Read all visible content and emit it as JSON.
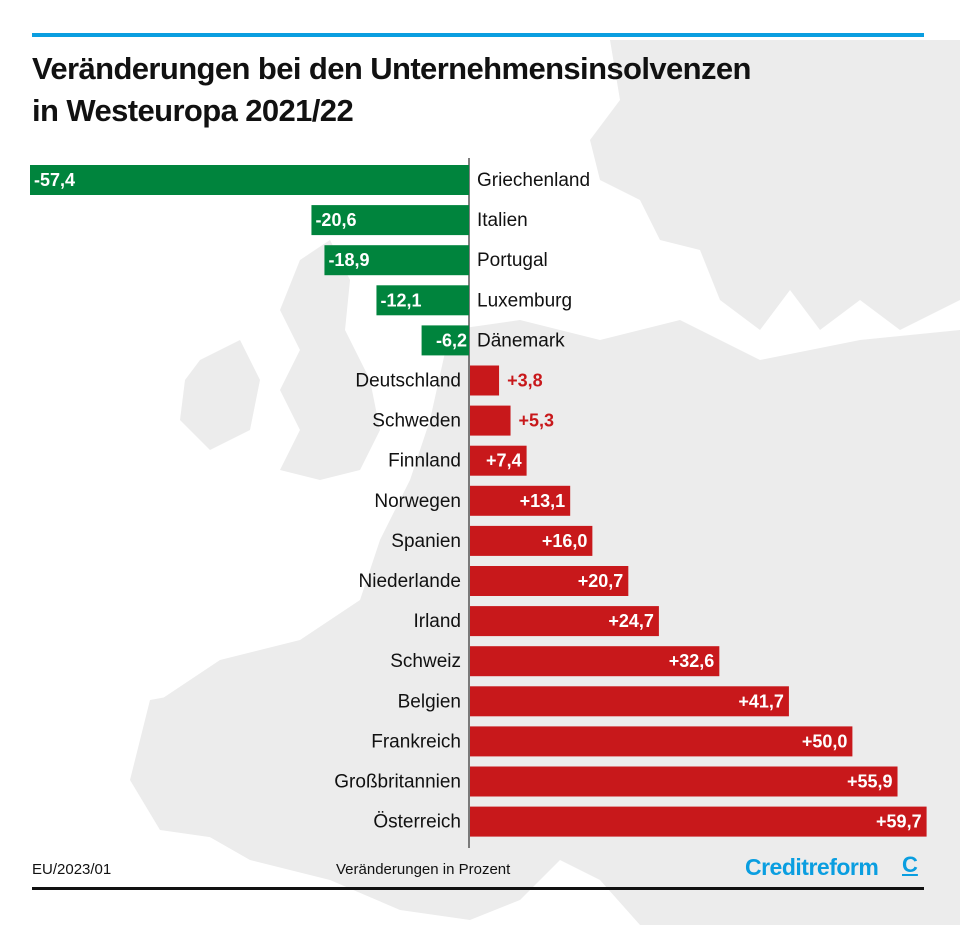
{
  "colors": {
    "negative": "#00843d",
    "positive": "#c8181b",
    "accent_line": "#0a9ee0",
    "logo": "#0a9ee0",
    "map": "#ebebeb",
    "text": "#111111"
  },
  "header": {
    "title_line1": "Veränderungen bei den Unternehmensinsolvenzen",
    "title_line2": "in Westeuropa 2021/22"
  },
  "footer": {
    "source": "EU/2023/01",
    "unit_note": "Veränderungen in Prozent",
    "logo_text": "Creditreform",
    "logo_mark": "C"
  },
  "chart_data": {
    "type": "bar",
    "orientation": "horizontal",
    "title": "Veränderungen bei den Unternehmensinsolvenzen in Westeuropa 2021/22",
    "xlabel": "Veränderungen in Prozent",
    "ylabel": "",
    "xlim": [
      -57.4,
      59.7
    ],
    "grid": false,
    "categories": [
      "Griechenland",
      "Italien",
      "Portugal",
      "Luxemburg",
      "Dänemark",
      "Deutschland",
      "Schweden",
      "Finnland",
      "Norwegen",
      "Spanien",
      "Niederlande",
      "Irland",
      "Schweiz",
      "Belgien",
      "Frankreich",
      "Großbritannien",
      "Österreich"
    ],
    "values": [
      -57.4,
      -20.6,
      -18.9,
      -12.1,
      -6.2,
      3.8,
      5.3,
      7.4,
      13.1,
      16.0,
      20.7,
      24.7,
      32.6,
      41.7,
      50.0,
      55.9,
      59.7
    ],
    "labels": [
      "-57,4",
      "-20,6",
      "-18,9",
      "-12,1",
      "-6,2",
      "+3,8",
      "+5,3",
      "+7,4",
      "+13,1",
      "+16,0",
      "+20,7",
      "+24,7",
      "+32,6",
      "+41,7",
      "+50,0",
      "+55,9",
      "+59,7"
    ]
  }
}
